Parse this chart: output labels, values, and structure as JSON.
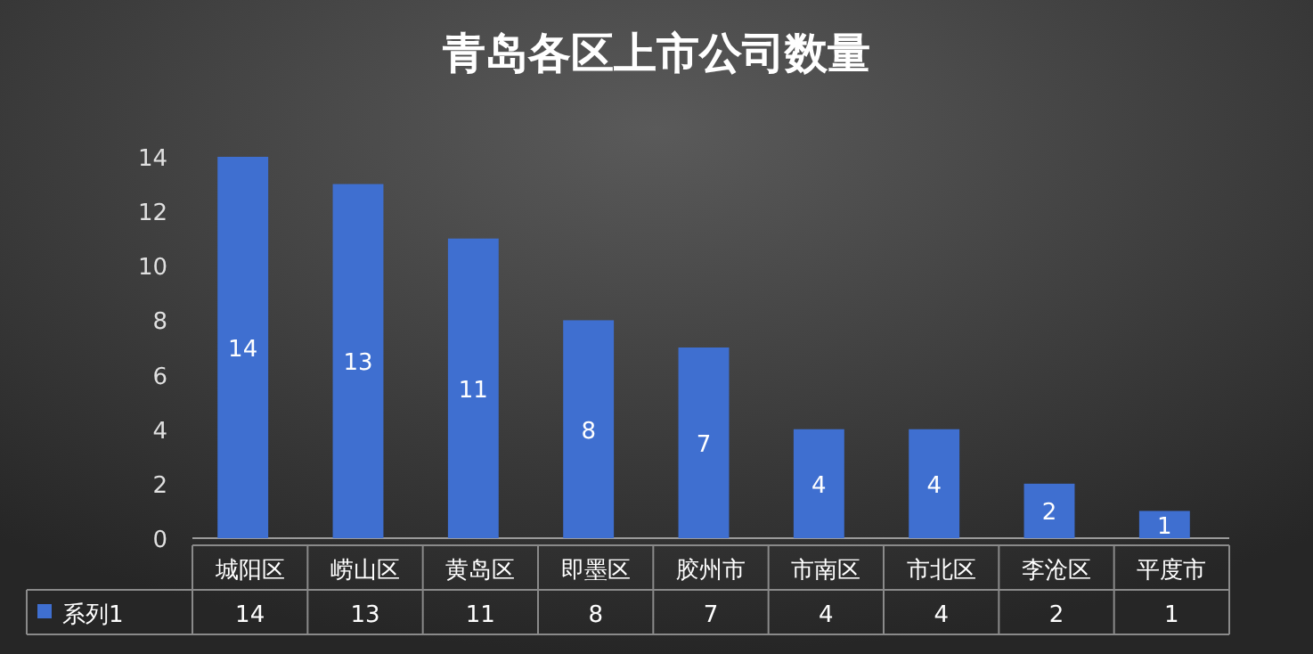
{
  "chart_data": {
    "type": "bar",
    "title": "青岛各区上市公司数量",
    "categories": [
      "城阳区",
      "崂山区",
      "黄岛区",
      "即墨区",
      "胶州市",
      "市南区",
      "市北区",
      "李沧区",
      "平度市"
    ],
    "series": [
      {
        "name": "系列1",
        "color": "#3f6fd0",
        "values": [
          14,
          13,
          11,
          8,
          7,
          4,
          4,
          2,
          1
        ]
      }
    ],
    "data_labels": true,
    "ylim": [
      0,
      14
    ],
    "yticks": [
      0,
      2,
      4,
      6,
      8,
      10,
      12,
      14
    ],
    "legend": "bottom",
    "annotations": [
      "14",
      "13",
      "11",
      "8",
      "7",
      "4",
      "4",
      "2",
      "1"
    ]
  }
}
